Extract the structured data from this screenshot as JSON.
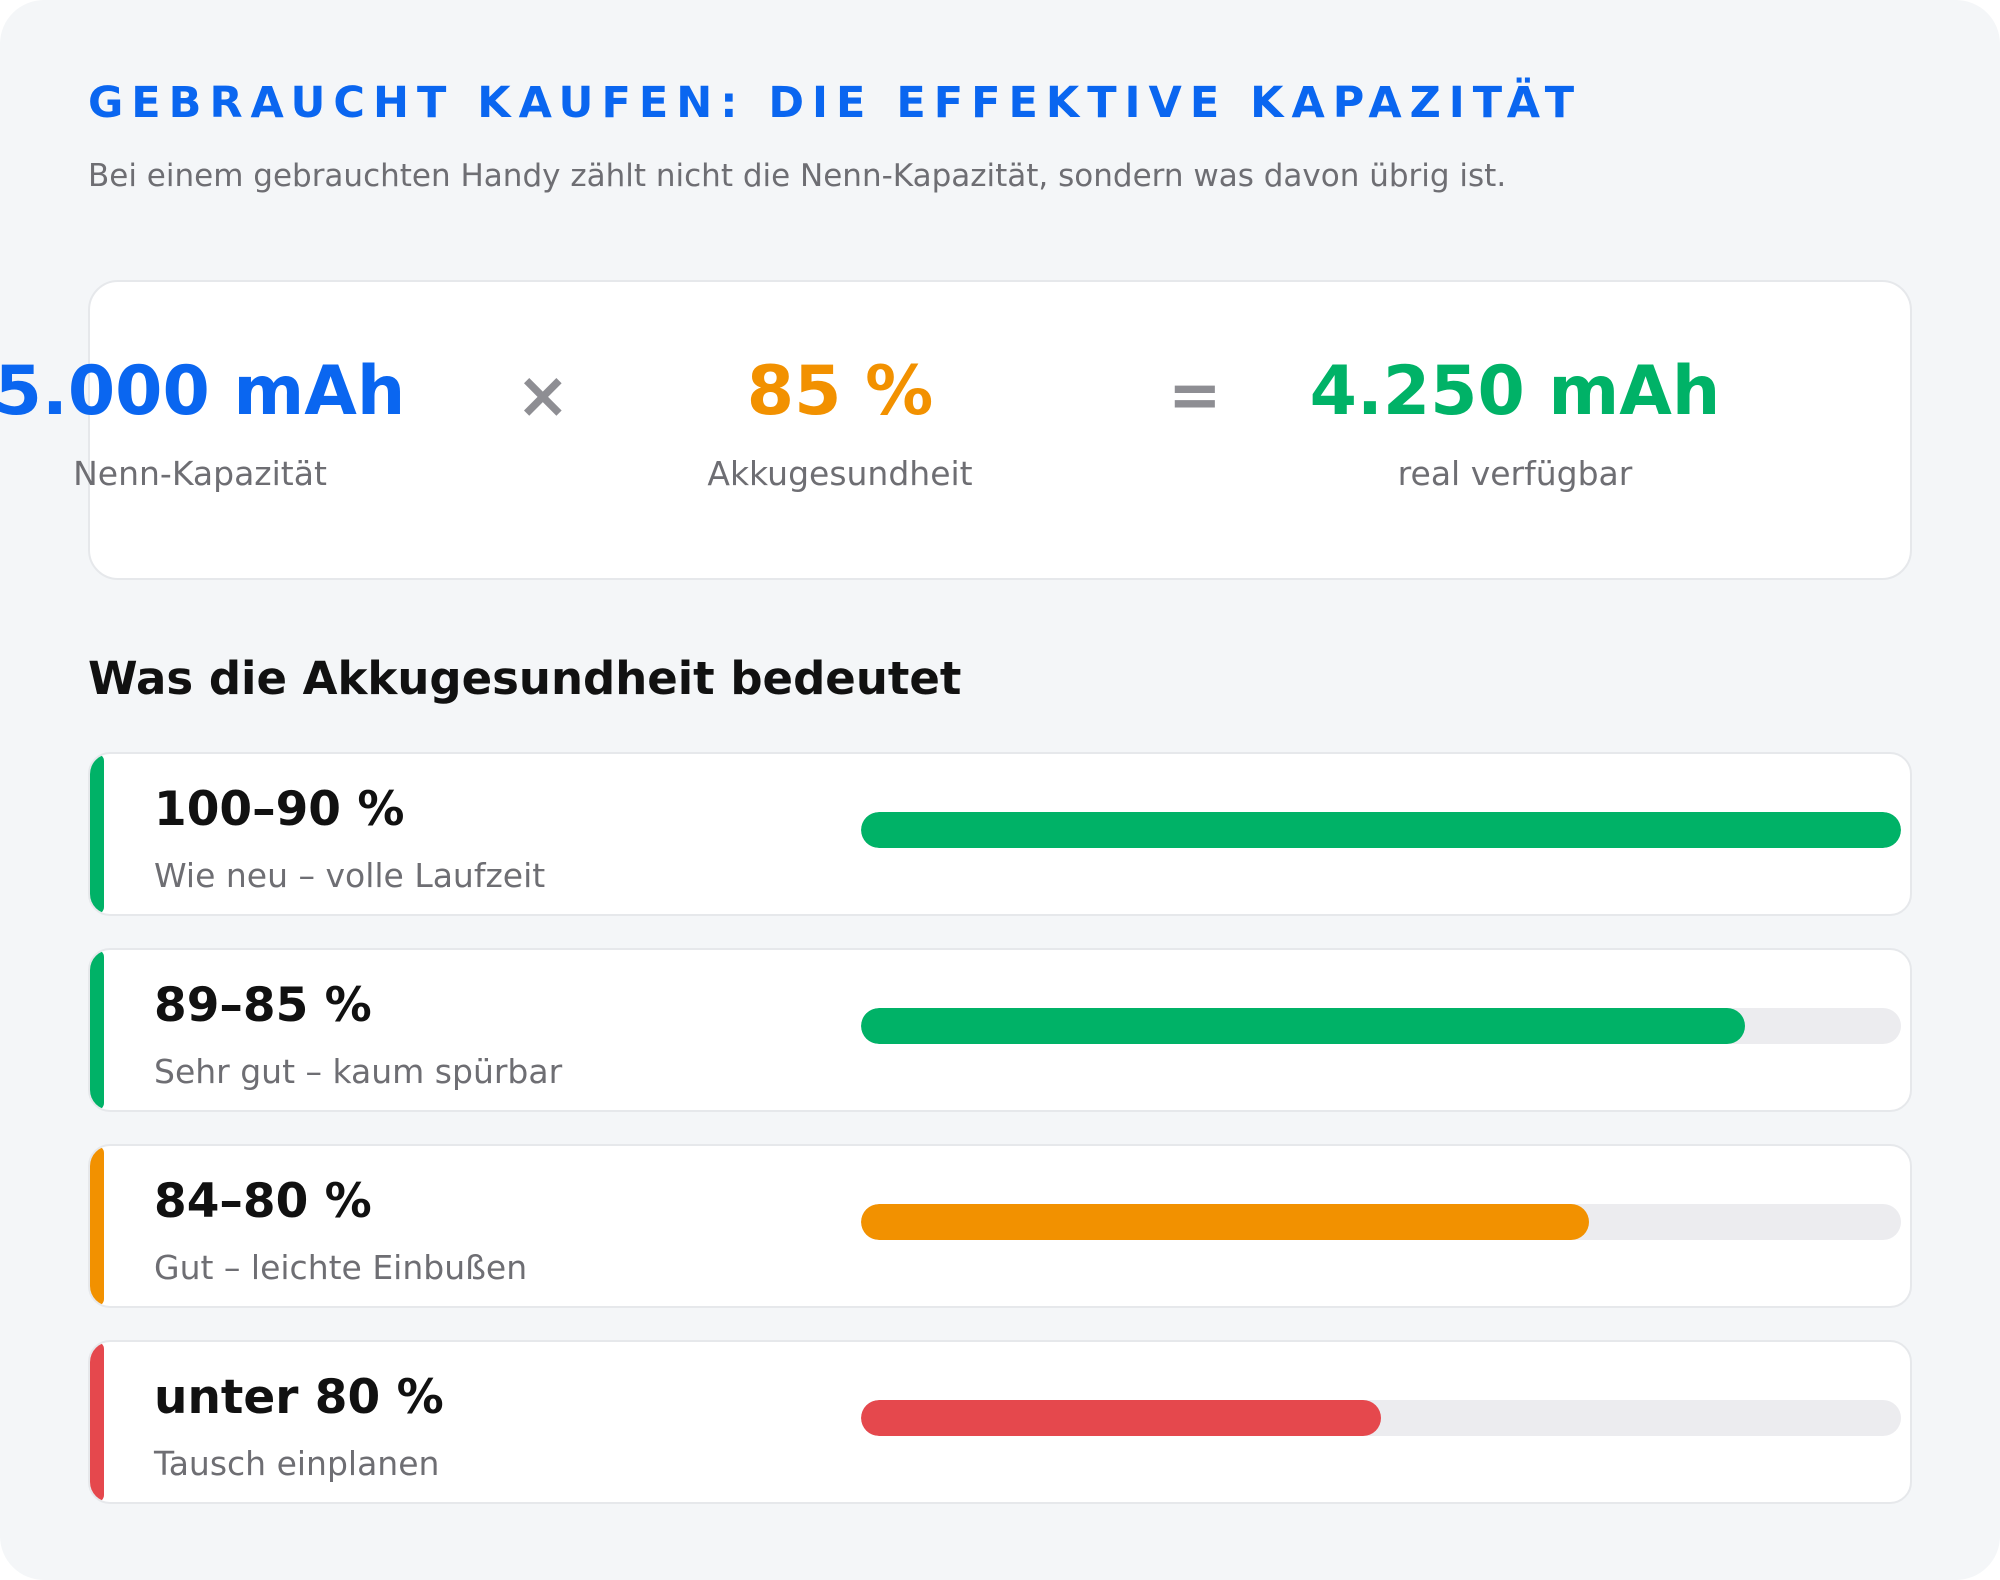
{
  "header": {
    "eyebrow": "GEBRAUCHT KAUFEN: DIE EFFEKTIVE KAPAZITÄT",
    "subtitle": "Bei einem gebrauchten Handy zählt nicht die Nenn-Kapazität, sondern was davon übrig ist."
  },
  "calculation": {
    "capacity": {
      "value": "5.000 mAh",
      "label": "Nenn-Kapazität",
      "color": "#0a66f0"
    },
    "multiply_symbol": "×",
    "health": {
      "value": "85 %",
      "label": "Akkugesundheit",
      "color": "#f29100"
    },
    "equals_symbol": "=",
    "result": {
      "value": "4.250 mAh",
      "label": "real verfügbar",
      "color": "#00b267"
    }
  },
  "legend": {
    "title": "Was die Akkugesundheit bedeutet",
    "rows": [
      {
        "range": "100–90 %",
        "description": "Wie neu – volle Laufzeit",
        "level": 1.0,
        "color": "#00b267"
      },
      {
        "range": "89–85 %",
        "description": "Sehr gut – kaum spürbar",
        "level": 0.85,
        "color": "#00b267"
      },
      {
        "range": "84–80 %",
        "description": "Gut – leichte Einbußen",
        "level": 0.7,
        "color": "#f29100"
      },
      {
        "range": "unter 80 %",
        "description": "Tausch einplanen",
        "level": 0.5,
        "color": "#e5484d"
      }
    ]
  }
}
